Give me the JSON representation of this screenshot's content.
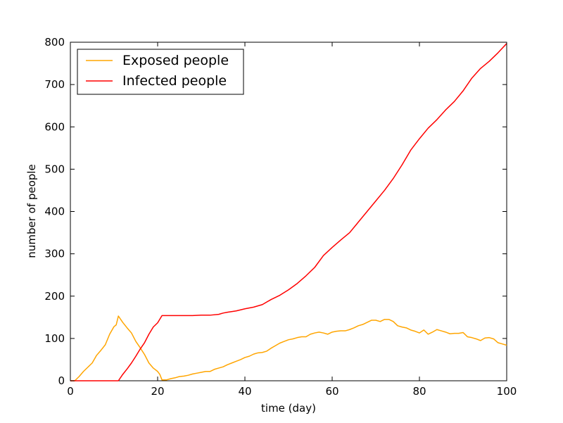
{
  "chart_data": {
    "type": "line",
    "xlabel": "time (day)",
    "ylabel": "number of people",
    "xlim": [
      0,
      100
    ],
    "ylim": [
      0,
      800
    ],
    "xticks": [
      0,
      20,
      40,
      60,
      80,
      100
    ],
    "yticks": [
      0,
      100,
      200,
      300,
      400,
      500,
      600,
      700,
      800
    ],
    "xtick_labels": [
      "0",
      "20",
      "40",
      "60",
      "80",
      "100"
    ],
    "ytick_labels": [
      "0",
      "100",
      "200",
      "300",
      "400",
      "500",
      "600",
      "700",
      "800"
    ],
    "grid": false,
    "legend_position": "top-left",
    "series": [
      {
        "name": "Exposed people",
        "color": "#FFA500",
        "points": [
          [
            0,
            0
          ],
          [
            1,
            0
          ],
          [
            2,
            10
          ],
          [
            3,
            22
          ],
          [
            4,
            32
          ],
          [
            5,
            42
          ],
          [
            6,
            60
          ],
          [
            7,
            72
          ],
          [
            8,
            85
          ],
          [
            9,
            110
          ],
          [
            10,
            128
          ],
          [
            10.5,
            132
          ],
          [
            11,
            153
          ],
          [
            12,
            138
          ],
          [
            13,
            125
          ],
          [
            14,
            113
          ],
          [
            15,
            93
          ],
          [
            16,
            78
          ],
          [
            17,
            62
          ],
          [
            18,
            42
          ],
          [
            19,
            30
          ],
          [
            20,
            22
          ],
          [
            20.5,
            15
          ],
          [
            21,
            2
          ],
          [
            22,
            2
          ],
          [
            23,
            5
          ],
          [
            24,
            7
          ],
          [
            25,
            10
          ],
          [
            26,
            11
          ],
          [
            27,
            13
          ],
          [
            28,
            16
          ],
          [
            29,
            18
          ],
          [
            30,
            20
          ],
          [
            31,
            22
          ],
          [
            32,
            22
          ],
          [
            33,
            27
          ],
          [
            34,
            30
          ],
          [
            35,
            33
          ],
          [
            36,
            38
          ],
          [
            37,
            42
          ],
          [
            38,
            46
          ],
          [
            39,
            50
          ],
          [
            40,
            55
          ],
          [
            41,
            58
          ],
          [
            42,
            63
          ],
          [
            43,
            66
          ],
          [
            44,
            67
          ],
          [
            45,
            70
          ],
          [
            46,
            77
          ],
          [
            47,
            83
          ],
          [
            48,
            89
          ],
          [
            49,
            93
          ],
          [
            50,
            97
          ],
          [
            51,
            99
          ],
          [
            52,
            102
          ],
          [
            53,
            104
          ],
          [
            54,
            104
          ],
          [
            55,
            110
          ],
          [
            56,
            113
          ],
          [
            57,
            115
          ],
          [
            58,
            113
          ],
          [
            59,
            110
          ],
          [
            60,
            115
          ],
          [
            61,
            117
          ],
          [
            62,
            118
          ],
          [
            63,
            118
          ],
          [
            64,
            121
          ],
          [
            65,
            125
          ],
          [
            66,
            130
          ],
          [
            67,
            133
          ],
          [
            68,
            138
          ],
          [
            69,
            143
          ],
          [
            70,
            143
          ],
          [
            71,
            140
          ],
          [
            72,
            145
          ],
          [
            73,
            145
          ],
          [
            74,
            140
          ],
          [
            75,
            130
          ],
          [
            76,
            127
          ],
          [
            77,
            125
          ],
          [
            78,
            120
          ],
          [
            79,
            117
          ],
          [
            80,
            113
          ],
          [
            81,
            120
          ],
          [
            82,
            110
          ],
          [
            83,
            115
          ],
          [
            84,
            121
          ],
          [
            85,
            118
          ],
          [
            86,
            115
          ],
          [
            87,
            111
          ],
          [
            88,
            112
          ],
          [
            89,
            112
          ],
          [
            90,
            114
          ],
          [
            91,
            104
          ],
          [
            92,
            102
          ],
          [
            93,
            99
          ],
          [
            94,
            95
          ],
          [
            95,
            101
          ],
          [
            96,
            102
          ],
          [
            97,
            99
          ],
          [
            98,
            90
          ],
          [
            99,
            87
          ],
          [
            100,
            84
          ]
        ]
      },
      {
        "name": "Infected people",
        "color": "#FF0000",
        "points": [
          [
            0,
            0
          ],
          [
            11,
            0
          ],
          [
            12,
            15
          ],
          [
            13,
            28
          ],
          [
            14,
            42
          ],
          [
            15,
            58
          ],
          [
            16,
            75
          ],
          [
            17,
            90
          ],
          [
            18,
            110
          ],
          [
            19,
            127
          ],
          [
            20,
            137
          ],
          [
            21,
            154
          ],
          [
            22,
            154
          ],
          [
            25,
            154
          ],
          [
            28,
            154
          ],
          [
            30,
            155
          ],
          [
            32,
            155
          ],
          [
            34,
            157
          ],
          [
            35,
            160
          ],
          [
            36,
            162
          ],
          [
            38,
            165
          ],
          [
            40,
            170
          ],
          [
            42,
            174
          ],
          [
            44,
            180
          ],
          [
            46,
            192
          ],
          [
            48,
            202
          ],
          [
            50,
            215
          ],
          [
            52,
            230
          ],
          [
            54,
            248
          ],
          [
            56,
            268
          ],
          [
            58,
            296
          ],
          [
            60,
            315
          ],
          [
            62,
            333
          ],
          [
            64,
            350
          ],
          [
            66,
            375
          ],
          [
            68,
            400
          ],
          [
            70,
            425
          ],
          [
            72,
            450
          ],
          [
            74,
            478
          ],
          [
            76,
            510
          ],
          [
            78,
            545
          ],
          [
            80,
            572
          ],
          [
            82,
            597
          ],
          [
            84,
            617
          ],
          [
            86,
            640
          ],
          [
            88,
            660
          ],
          [
            90,
            685
          ],
          [
            92,
            715
          ],
          [
            94,
            738
          ],
          [
            96,
            755
          ],
          [
            98,
            775
          ],
          [
            100,
            797
          ]
        ]
      }
    ]
  }
}
